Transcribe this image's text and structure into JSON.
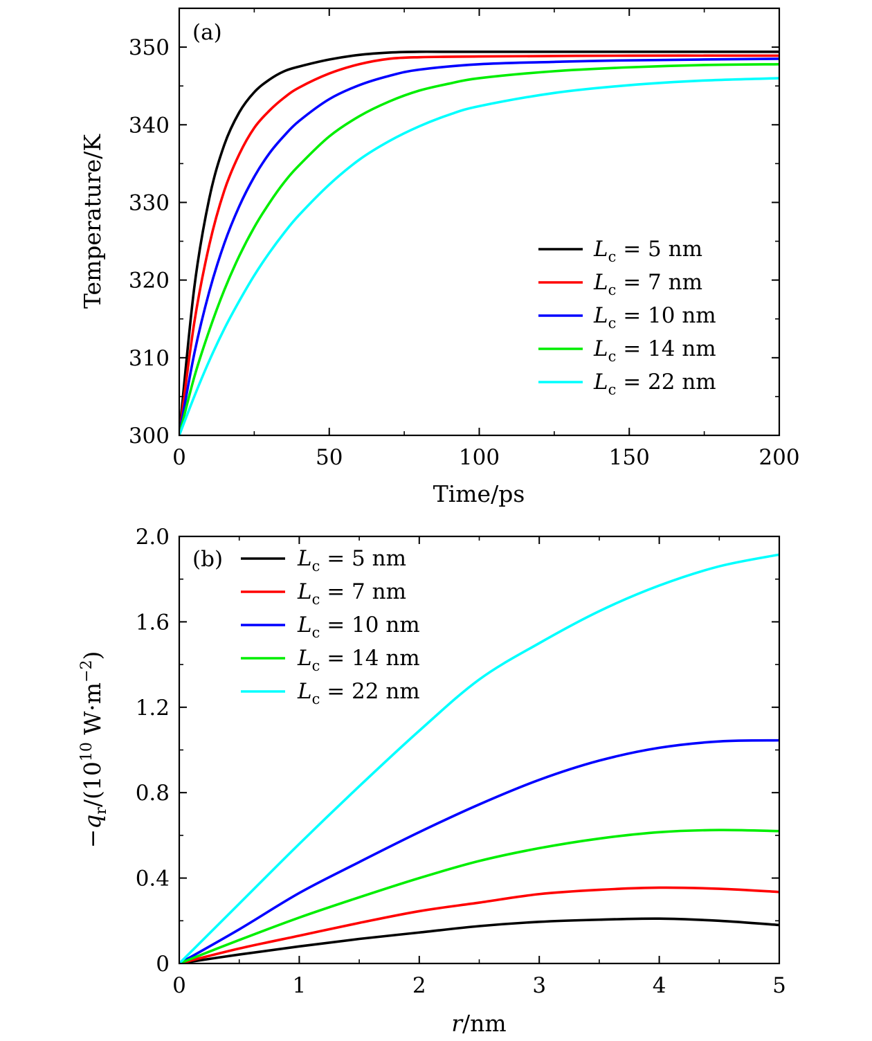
{
  "chart_data": [
    {
      "panel_label": "(a)",
      "type": "line",
      "xlabel": "Time/ps",
      "ylabel": "Temperature/K",
      "xlim": [
        0,
        200
      ],
      "ylim": [
        300,
        355
      ],
      "xticks": [
        0,
        50,
        100,
        150,
        200
      ],
      "yticks": [
        300,
        310,
        320,
        330,
        340,
        350
      ],
      "legend_position": "bottom-right",
      "series": [
        {
          "name": "L_c = 5 nm",
          "legend": {
            "var": "L",
            "sub": "c",
            "rest": " = 5 nm"
          },
          "color": "#000000",
          "points": [
            [
              0,
              300
            ],
            [
              5,
              319
            ],
            [
              10,
              330.5
            ],
            [
              15,
              337.4
            ],
            [
              20,
              341.6
            ],
            [
              25,
              344.2
            ],
            [
              30,
              345.8
            ],
            [
              35,
              346.9
            ],
            [
              40,
              347.5
            ],
            [
              50,
              348.4
            ],
            [
              60,
              349
            ],
            [
              70,
              349.3
            ],
            [
              80,
              349.4
            ],
            [
              100,
              349.4
            ],
            [
              150,
              349.4
            ],
            [
              200,
              349.4
            ]
          ]
        },
        {
          "name": "L_c = 7 nm",
          "legend": {
            "var": "L",
            "sub": "c",
            "rest": " = 7 nm"
          },
          "color": "#ff0000",
          "points": [
            [
              0,
              300
            ],
            [
              5,
              314.5
            ],
            [
              10,
              324.5
            ],
            [
              15,
              331.5
            ],
            [
              20,
              336.2
            ],
            [
              25,
              339.6
            ],
            [
              30,
              341.8
            ],
            [
              35,
              343.5
            ],
            [
              40,
              344.8
            ],
            [
              50,
              346.6
            ],
            [
              60,
              347.8
            ],
            [
              70,
              348.5
            ],
            [
              80,
              348.7
            ],
            [
              100,
              348.8
            ],
            [
              150,
              348.9
            ],
            [
              200,
              348.9
            ]
          ]
        },
        {
          "name": "L_c = 10 nm",
          "legend": {
            "var": "L",
            "sub": "c",
            "rest": " = 10 nm"
          },
          "color": "#0000ff",
          "points": [
            [
              0,
              300
            ],
            [
              5,
              310.5
            ],
            [
              10,
              318.5
            ],
            [
              15,
              324.7
            ],
            [
              20,
              329.5
            ],
            [
              25,
              333.3
            ],
            [
              30,
              336.3
            ],
            [
              35,
              338.6
            ],
            [
              40,
              340.5
            ],
            [
              50,
              343.3
            ],
            [
              60,
              345.1
            ],
            [
              70,
              346.3
            ],
            [
              80,
              347.1
            ],
            [
              100,
              347.8
            ],
            [
              125,
              348.1
            ],
            [
              150,
              348.3
            ],
            [
              200,
              348.5
            ]
          ]
        },
        {
          "name": "L_c = 14 nm",
          "legend": {
            "var": "L",
            "sub": "c",
            "rest": " = 14 nm"
          },
          "color": "#00ee00",
          "points": [
            [
              0,
              300
            ],
            [
              5,
              307.5
            ],
            [
              10,
              313.5
            ],
            [
              15,
              318.7
            ],
            [
              20,
              323.1
            ],
            [
              25,
              326.8
            ],
            [
              30,
              329.9
            ],
            [
              35,
              332.6
            ],
            [
              40,
              334.8
            ],
            [
              50,
              338.5
            ],
            [
              60,
              341.1
            ],
            [
              70,
              343
            ],
            [
              80,
              344.4
            ],
            [
              90,
              345.3
            ],
            [
              100,
              346
            ],
            [
              125,
              346.9
            ],
            [
              150,
              347.4
            ],
            [
              175,
              347.7
            ],
            [
              200,
              347.8
            ]
          ]
        },
        {
          "name": "L_c = 22 nm",
          "legend": {
            "var": "L",
            "sub": "c",
            "rest": " = 22 nm"
          },
          "color": "#00ffff",
          "points": [
            [
              0,
              300
            ],
            [
              5,
              305
            ],
            [
              10,
              309.6
            ],
            [
              15,
              313.7
            ],
            [
              20,
              317.3
            ],
            [
              25,
              320.6
            ],
            [
              30,
              323.5
            ],
            [
              35,
              326.1
            ],
            [
              40,
              328.4
            ],
            [
              50,
              332.3
            ],
            [
              60,
              335.5
            ],
            [
              70,
              337.9
            ],
            [
              80,
              339.8
            ],
            [
              90,
              341.3
            ],
            [
              100,
              342.4
            ],
            [
              125,
              344.1
            ],
            [
              150,
              345.1
            ],
            [
              175,
              345.7
            ],
            [
              200,
              346
            ]
          ]
        }
      ]
    },
    {
      "panel_label": "(b)",
      "type": "line",
      "xlabel": {
        "var": "r",
        "rest": "/nm"
      },
      "ylabel": {
        "prefix": "−",
        "var": "q",
        "sub": "r",
        "mid": "/(10",
        "sup": "10",
        "unit": " W·m",
        "sup2": "−2",
        "close": ")"
      },
      "xlim": [
        0,
        5
      ],
      "ylim": [
        0,
        2.0
      ],
      "xticks": [
        0,
        1,
        2,
        3,
        4,
        5
      ],
      "yticks": [
        0,
        0.4,
        0.8,
        1.2,
        1.6,
        2.0
      ],
      "ytick_labels": [
        "0",
        "0.4",
        "0.8",
        "1.2",
        "1.6",
        "2.0"
      ],
      "legend_position": "top-left",
      "series": [
        {
          "name": "L_c = 5 nm",
          "legend": {
            "var": "L",
            "sub": "c",
            "rest": " = 5 nm"
          },
          "color": "#000000",
          "points": [
            [
              0,
              0
            ],
            [
              0.5,
              0.042
            ],
            [
              1,
              0.08
            ],
            [
              1.5,
              0.115
            ],
            [
              2,
              0.145
            ],
            [
              2.5,
              0.175
            ],
            [
              3,
              0.195
            ],
            [
              3.5,
              0.205
            ],
            [
              4,
              0.21
            ],
            [
              4.5,
              0.2
            ],
            [
              5,
              0.18
            ]
          ]
        },
        {
          "name": "L_c = 7 nm",
          "legend": {
            "var": "L",
            "sub": "c",
            "rest": " = 7 nm"
          },
          "color": "#ff0000",
          "points": [
            [
              0,
              0
            ],
            [
              0.5,
              0.07
            ],
            [
              1,
              0.13
            ],
            [
              1.5,
              0.19
            ],
            [
              2,
              0.245
            ],
            [
              2.5,
              0.285
            ],
            [
              3,
              0.325
            ],
            [
              3.5,
              0.345
            ],
            [
              4,
              0.355
            ],
            [
              4.5,
              0.35
            ],
            [
              5,
              0.335
            ]
          ]
        },
        {
          "name": "L_c = 10 nm",
          "legend": {
            "var": "L",
            "sub": "c",
            "rest": " = 10 nm"
          },
          "color": "#0000ff",
          "points": [
            [
              0,
              0
            ],
            [
              0.5,
              0.16
            ],
            [
              1,
              0.33
            ],
            [
              1.5,
              0.475
            ],
            [
              2,
              0.615
            ],
            [
              2.5,
              0.745
            ],
            [
              3,
              0.86
            ],
            [
              3.5,
              0.95
            ],
            [
              4,
              1.01
            ],
            [
              4.5,
              1.04
            ],
            [
              5,
              1.045
            ]
          ]
        },
        {
          "name": "L_c = 14 nm",
          "legend": {
            "var": "L",
            "sub": "c",
            "rest": " = 14 nm"
          },
          "color": "#00ee00",
          "points": [
            [
              0,
              0
            ],
            [
              0.5,
              0.11
            ],
            [
              1,
              0.215
            ],
            [
              1.5,
              0.31
            ],
            [
              2,
              0.4
            ],
            [
              2.5,
              0.48
            ],
            [
              3,
              0.54
            ],
            [
              3.5,
              0.585
            ],
            [
              4,
              0.615
            ],
            [
              4.5,
              0.625
            ],
            [
              5,
              0.62
            ]
          ]
        },
        {
          "name": "L_c = 22 nm",
          "legend": {
            "var": "L",
            "sub": "c",
            "rest": " = 22 nm"
          },
          "color": "#00ffff",
          "points": [
            [
              0,
              0
            ],
            [
              0.5,
              0.28
            ],
            [
              1,
              0.56
            ],
            [
              1.5,
              0.83
            ],
            [
              2,
              1.09
            ],
            [
              2.5,
              1.33
            ],
            [
              3,
              1.5
            ],
            [
              3.5,
              1.65
            ],
            [
              4,
              1.77
            ],
            [
              4.5,
              1.86
            ],
            [
              5,
              1.915
            ]
          ]
        }
      ]
    }
  ]
}
